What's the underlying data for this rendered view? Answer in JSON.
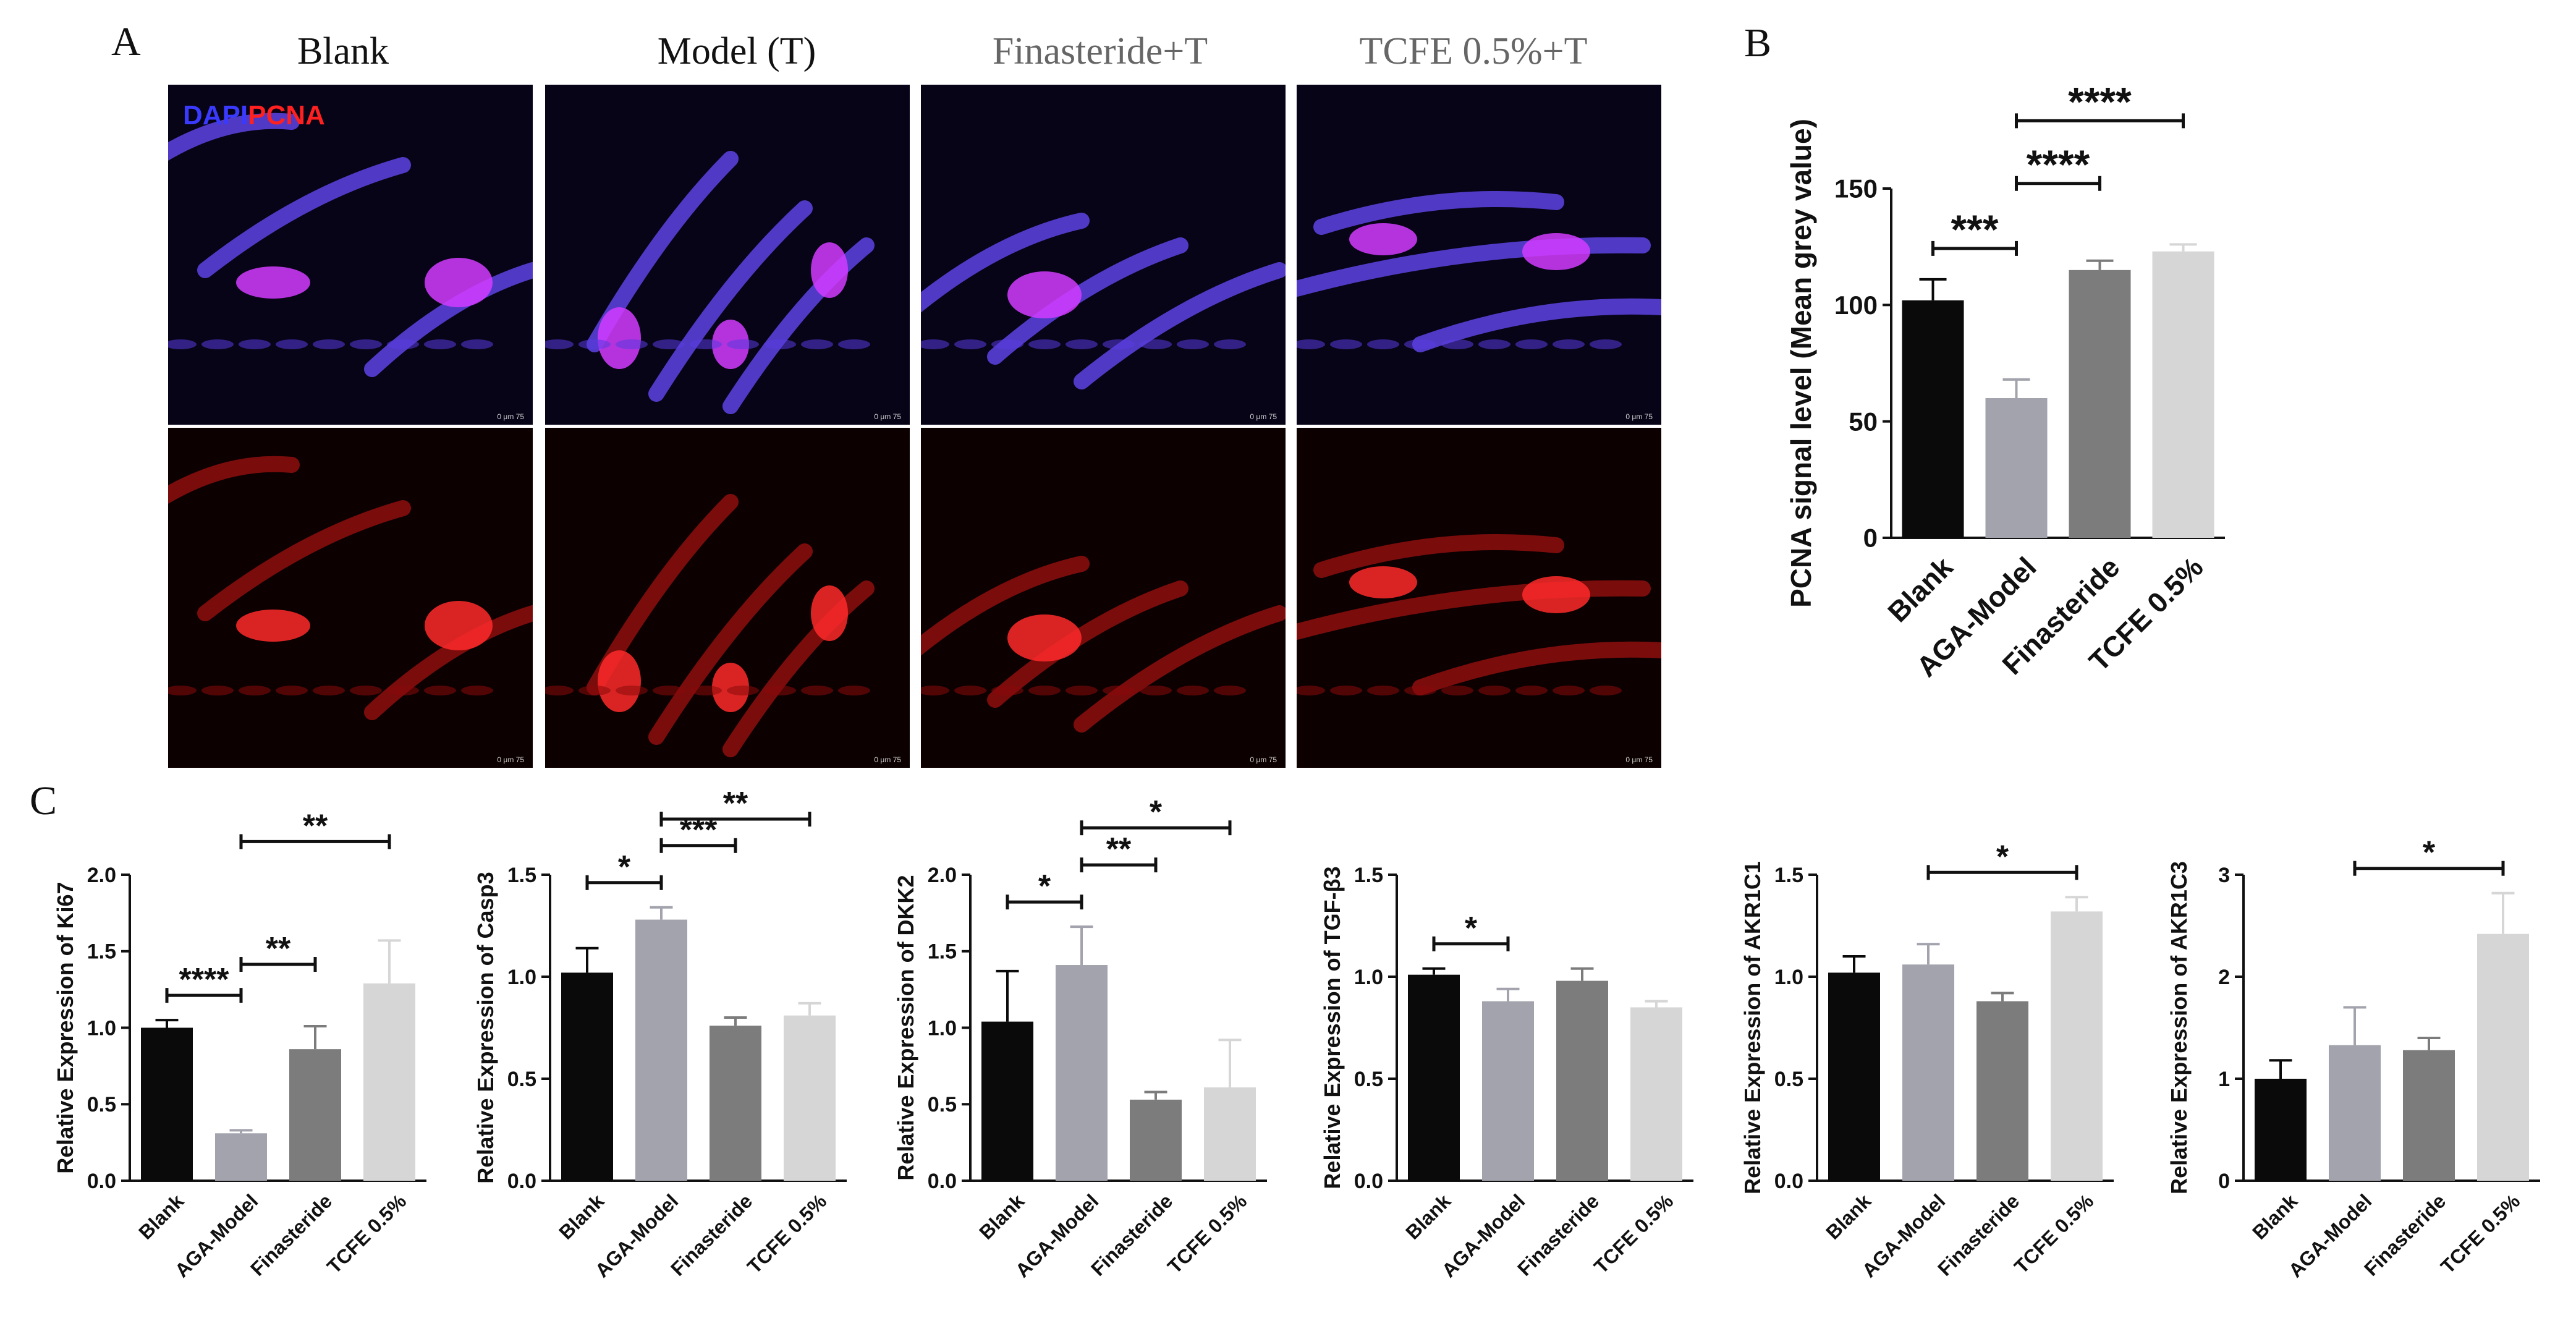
{
  "panels": {
    "A": {
      "letter": "A",
      "column_titles": [
        "Blank",
        "Model (T)",
        "Finasteride+T",
        "TCFE 0.5%+T"
      ],
      "title_colors": [
        "#111111",
        "#111111",
        "#666666",
        "#666666"
      ],
      "stain_labels": {
        "dapi": "DAPI",
        "pcna": "PCNA"
      },
      "stain_colors": {
        "dapi": "#3a3aff",
        "pcna": "#ff2020"
      },
      "scale_bar_text": "0   μm   75"
    },
    "B": {
      "letter": "B"
    },
    "C": {
      "letter": "C"
    }
  },
  "colors": {
    "bar_fills": [
      "#0a0a0a",
      "#a3a3ad",
      "#7c7c7c",
      "#d6d6d6"
    ],
    "axis": "#111111"
  },
  "chart_data": [
    {
      "id": "pcna",
      "type": "bar",
      "categories": [
        "Blank",
        "AGA-Model",
        "Finasteride",
        "TCFE 0.5%"
      ],
      "values": [
        102,
        60,
        115,
        123
      ],
      "errors": [
        9,
        8,
        4,
        3
      ],
      "ylabel": "PCNA signal level (Mean grey value)",
      "ylim": [
        0,
        150
      ],
      "yticks": [
        0,
        50,
        100,
        150
      ],
      "significance": [
        {
          "from": 0,
          "to": 1,
          "label": "***"
        },
        {
          "from": 1,
          "to": 2,
          "label": "****"
        },
        {
          "from": 1,
          "to": 3,
          "label": "****"
        }
      ]
    },
    {
      "id": "ki67",
      "type": "bar",
      "categories": [
        "Blank",
        "AGA-Model",
        "Finasteride",
        "TCFE 0.5%"
      ],
      "values": [
        1.0,
        0.31,
        0.86,
        1.29
      ],
      "errors": [
        0.05,
        0.02,
        0.15,
        0.28
      ],
      "ylabel": "Relative Expression of Ki67",
      "ylim": [
        0,
        2.0
      ],
      "yticks": [
        "0.0",
        "0.5",
        "1.0",
        "1.5",
        "2.0"
      ],
      "significance": [
        {
          "from": 0,
          "to": 1,
          "label": "****"
        },
        {
          "from": 1,
          "to": 2,
          "label": "**"
        },
        {
          "from": 1,
          "to": 3,
          "label": "**"
        }
      ]
    },
    {
      "id": "casp3",
      "type": "bar",
      "categories": [
        "Blank",
        "AGA-Model",
        "Finasteride",
        "TCFE 0.5%"
      ],
      "values": [
        1.02,
        1.28,
        0.76,
        0.81
      ],
      "errors": [
        0.12,
        0.06,
        0.04,
        0.06
      ],
      "ylabel": "Relative Expression of Casp3",
      "ylim": [
        0,
        1.5
      ],
      "yticks": [
        "0.0",
        "0.5",
        "1.0",
        "1.5"
      ],
      "significance": [
        {
          "from": 0,
          "to": 1,
          "label": "*"
        },
        {
          "from": 1,
          "to": 2,
          "label": "***"
        },
        {
          "from": 1,
          "to": 3,
          "label": "**"
        }
      ]
    },
    {
      "id": "dkk2",
      "type": "bar",
      "categories": [
        "Blank",
        "AGA-Model",
        "Finasteride",
        "TCFE 0.5%"
      ],
      "values": [
        1.04,
        1.41,
        0.53,
        0.61
      ],
      "errors": [
        0.33,
        0.25,
        0.05,
        0.31
      ],
      "ylabel": "Relative Expression of DKK2",
      "ylim": [
        0,
        2.0
      ],
      "yticks": [
        "0.0",
        "0.5",
        "1.0",
        "1.5",
        "2.0"
      ],
      "significance": [
        {
          "from": 0,
          "to": 1,
          "label": "*"
        },
        {
          "from": 1,
          "to": 2,
          "label": "**"
        },
        {
          "from": 1,
          "to": 3,
          "label": "*"
        }
      ]
    },
    {
      "id": "tgfb3",
      "type": "bar",
      "categories": [
        "Blank",
        "AGA-Model",
        "Finasteride",
        "TCFE 0.5%"
      ],
      "values": [
        1.01,
        0.88,
        0.98,
        0.85
      ],
      "errors": [
        0.03,
        0.06,
        0.06,
        0.03
      ],
      "ylabel": "Relative Expression of TGF-β3",
      "ylim": [
        0,
        1.5
      ],
      "yticks": [
        "0.0",
        "0.5",
        "1.0",
        "1.5"
      ],
      "significance": [
        {
          "from": 0,
          "to": 1,
          "label": "*"
        }
      ]
    },
    {
      "id": "akr1c1",
      "type": "bar",
      "categories": [
        "Blank",
        "AGA-Model",
        "Finasteride",
        "TCFE 0.5%"
      ],
      "values": [
        1.02,
        1.06,
        0.88,
        1.32
      ],
      "errors": [
        0.08,
        0.1,
        0.04,
        0.07
      ],
      "ylabel": "Relative Expression of AKR1C1",
      "ylim": [
        0,
        1.5
      ],
      "yticks": [
        "0.0",
        "0.5",
        "1.0",
        "1.5"
      ],
      "significance": [
        {
          "from": 1,
          "to": 3,
          "label": "*"
        }
      ]
    },
    {
      "id": "akr1c3",
      "type": "bar",
      "categories": [
        "Blank",
        "AGA-Model",
        "Finasteride",
        "TCFE 0.5%"
      ],
      "values": [
        1.0,
        1.33,
        1.28,
        2.42
      ],
      "errors": [
        0.18,
        0.37,
        0.12,
        0.4
      ],
      "ylabel": "Relative Expression of AKR1C3",
      "ylim": [
        0,
        3
      ],
      "yticks": [
        "0",
        "1",
        "2",
        "3"
      ],
      "significance": [
        {
          "from": 1,
          "to": 3,
          "label": "*"
        }
      ]
    }
  ]
}
